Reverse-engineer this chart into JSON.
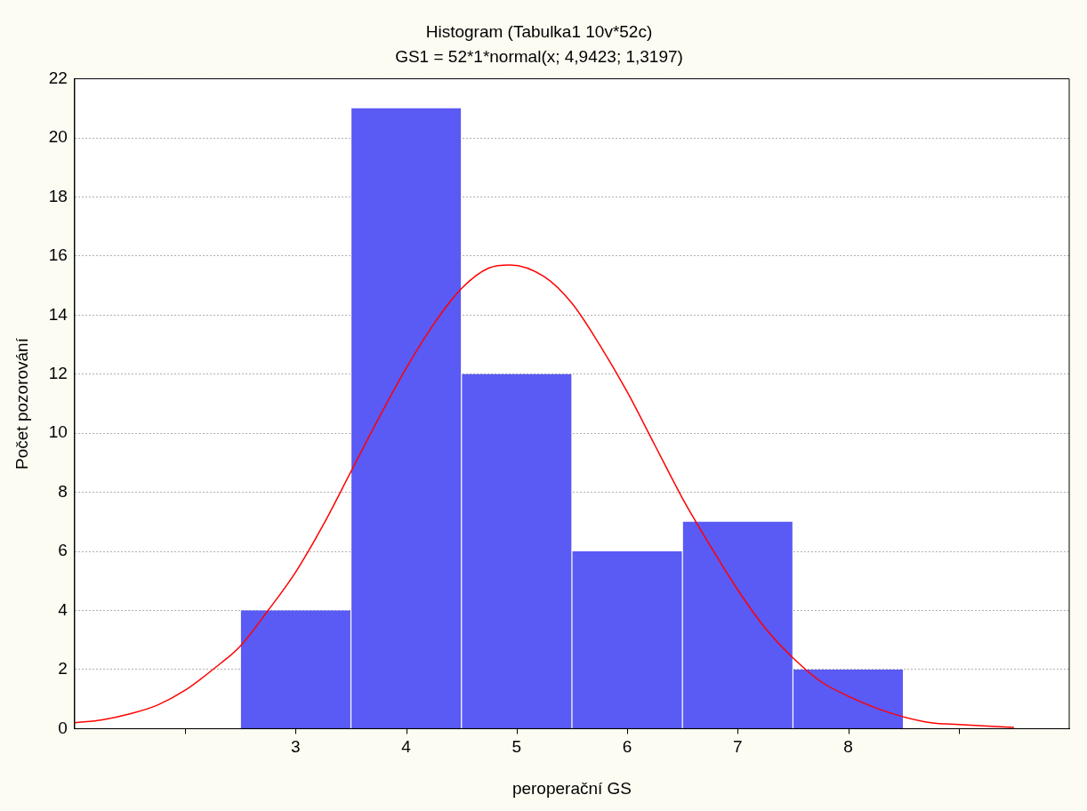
{
  "chart_data": {
    "type": "histogram",
    "title": "Histogram (Tabulka1 10v*52c)",
    "subtitle": "GS1 = 52*1*normal(x; 4,9423; 1,3197)",
    "xlabel": "peroperační GS",
    "ylabel": "Počet pozorování",
    "bins": [
      2.5,
      3.5,
      4.5,
      5.5,
      6.5,
      7.5,
      8.5
    ],
    "values": [
      4,
      21,
      12,
      6,
      7,
      2
    ],
    "color": "#5a5af5",
    "series": [
      {
        "type": "line",
        "color": "#ff0000",
        "x": [
          1,
          1.25,
          1.5,
          1.75,
          2,
          2.25,
          2.5,
          2.75,
          3,
          3.25,
          3.5,
          3.75,
          4,
          4.25,
          4.5,
          4.75,
          4.94,
          5.25,
          5.5,
          5.75,
          6,
          6.25,
          6.5,
          6.75,
          7,
          7.25,
          7.5,
          7.75,
          8,
          8.25,
          8.5,
          8.75,
          9,
          9.5
        ],
        "values": [
          0.2,
          0.3,
          0.5,
          0.8,
          1.3,
          2,
          2.8,
          4,
          5.3,
          6.9,
          8.7,
          10.5,
          12.2,
          13.7,
          14.9,
          15.6,
          15.7,
          15.3,
          14.4,
          13,
          11.4,
          9.6,
          7.8,
          6.2,
          4.7,
          3.4,
          2.4,
          1.6,
          1.1,
          0.7,
          0.4,
          0.2,
          0.14,
          0.04
        ]
      }
    ],
    "xlim": [
      1,
      10
    ],
    "xticks": [
      {
        "value": 2,
        "label": null
      },
      3,
      4,
      5,
      6,
      7,
      8,
      {
        "value": 9,
        "label": null
      }
    ],
    "ylim": [
      0,
      22
    ],
    "yticks": [
      0,
      2,
      4,
      6,
      8,
      10,
      12,
      14,
      16,
      18,
      20,
      22
    ],
    "grid": "y",
    "legend": false,
    "marker": "none"
  }
}
